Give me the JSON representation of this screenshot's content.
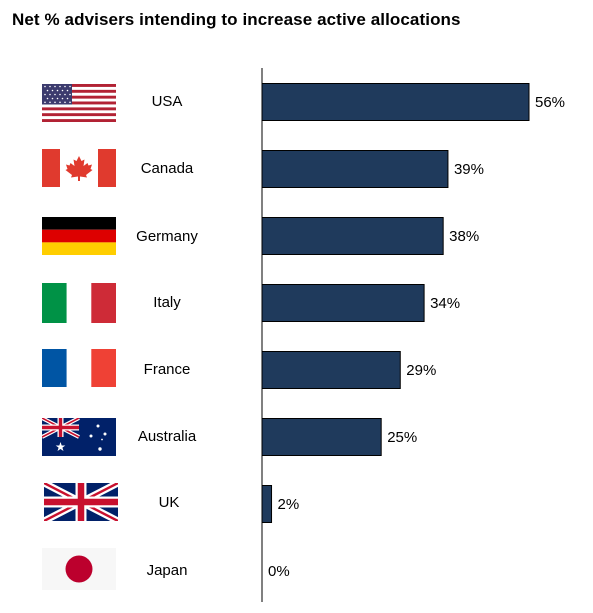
{
  "title": "Net % advisers intending to increase active allocations",
  "chart_data": {
    "type": "bar",
    "orientation": "horizontal",
    "title": "Net % advisers intending to increase active allocations",
    "categories": [
      "USA",
      "Canada",
      "Germany",
      "Italy",
      "France",
      "Australia",
      "UK",
      "Japan"
    ],
    "values": [
      56,
      39,
      38,
      34,
      29,
      25,
      2,
      0
    ],
    "value_labels": [
      "56%",
      "39%",
      "38%",
      "34%",
      "29%",
      "25%",
      "2%",
      "0%"
    ],
    "xlim": [
      0,
      56
    ],
    "unit": "%",
    "bar_color": "#1f3a5c",
    "grid": false,
    "legend": "none",
    "flag_icons": [
      "usa-flag-icon",
      "canada-flag-icon",
      "germany-flag-icon",
      "italy-flag-icon",
      "france-flag-icon",
      "australia-flag-icon",
      "uk-flag-icon",
      "japan-flag-icon"
    ]
  }
}
